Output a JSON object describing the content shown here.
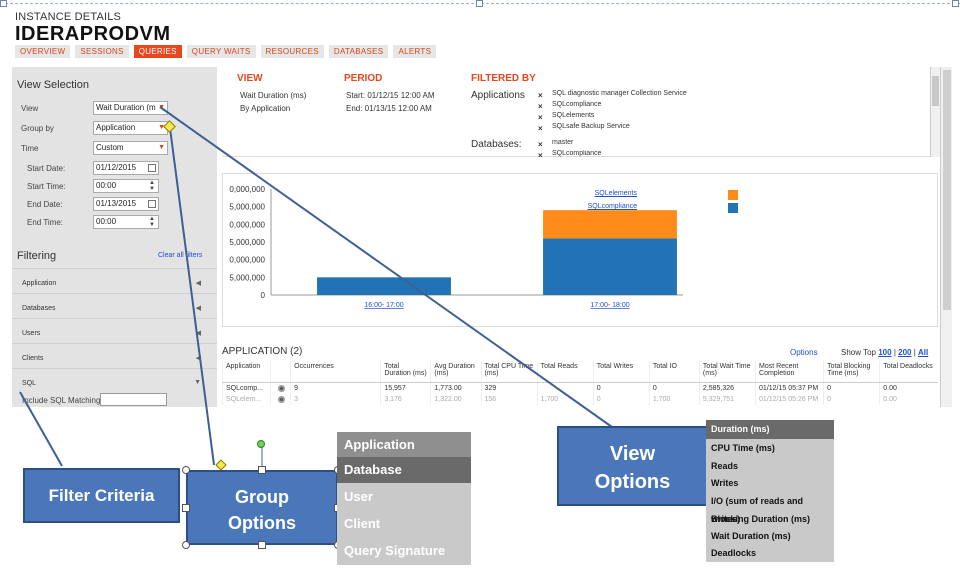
{
  "header": {
    "subtitle": "INSTANCE DETAILS",
    "title": "IDERAPRODVM"
  },
  "tabs": [
    {
      "label": "OVERVIEW",
      "active": false
    },
    {
      "label": "SESSIONS",
      "active": false
    },
    {
      "label": "QUERIES",
      "active": true
    },
    {
      "label": "QUERY WAITS",
      "active": false
    },
    {
      "label": "RESOURCES",
      "active": false
    },
    {
      "label": "DATABASES",
      "active": false
    },
    {
      "label": "ALERTS",
      "active": false
    }
  ],
  "view_selection": {
    "title": "View Selection",
    "view_label": "View",
    "view_value": "Wait Duration (m",
    "group_label": "Group by",
    "group_value": "Application",
    "time_label": "Time",
    "time_value": "Custom",
    "start_date_label": "Start Date:",
    "start_date": "01/12/2015",
    "start_time_label": "Start Time:",
    "start_time": "00:00",
    "end_date_label": "End Date:",
    "end_date": "01/13/2015",
    "end_time_label": "End Time:",
    "end_time": "00:00"
  },
  "filtering": {
    "title": "Filtering",
    "clear_all": "Clear all filters",
    "sections": [
      "Application",
      "Databases",
      "Users",
      "Clients",
      "SQL"
    ],
    "include_sql": "Include SQL Matching"
  },
  "summary": {
    "view_heading": "VIEW",
    "view_lines": [
      "Wait Duration (ms)",
      "By Application"
    ],
    "period_heading": "PERIOD",
    "period_lines": [
      "Start: 01/12/15 12:00 AM",
      "End: 01/13/15 12:00 AM"
    ],
    "filtered_heading": "FILTERED BY",
    "applications_label": "Applications",
    "applications": [
      "SQL diagnostic manager Collection Service",
      "SQLcompliance",
      "SQLelements",
      "SQLsafe Backup Service"
    ],
    "databases_label": "Databases:",
    "databases": [
      "master",
      "SQLcompliance"
    ]
  },
  "chart_data": {
    "type": "bar",
    "stacked": true,
    "categories": [
      "16:00- 17:00",
      "17:00- 18:00"
    ],
    "series": [
      {
        "name": "SQLcompliance",
        "color": "#2273b5",
        "values": [
          5000000,
          16000000
        ]
      },
      {
        "name": "SQLelements",
        "color": "#ff8c1a",
        "values": [
          0,
          8000000
        ]
      }
    ],
    "y_ticks": [
      "0",
      "5,000,000",
      "0,000,000",
      "5,000,000",
      "0,000,000",
      "5,000,000",
      "0,000,000"
    ],
    "ylim": [
      0,
      30000000
    ],
    "legend": "top-right"
  },
  "applications_table": {
    "title": "APPLICATION (2)",
    "options": "Options",
    "show_top_label": "Show Top",
    "show_top": [
      "100",
      "200",
      "All"
    ],
    "columns": [
      "Application",
      "Occurrences",
      "Total Duration (ms)",
      "Avg Duration (ms)",
      "Total CPU Time (ms)",
      "Total Reads",
      "Total Writes",
      "Total IO",
      "Total Wait Time (ms)",
      "Most Recent Completion",
      "Total Blocking Time (ms)",
      "Total Deadlocks"
    ],
    "rows": [
      [
        "SQLcomp...",
        "9",
        "15,957",
        "1,773.00",
        "329",
        "",
        "0",
        "0",
        "2,585,326",
        "01/12/15 05:37 PM",
        "0",
        "0.00"
      ],
      [
        "SQLelem...",
        "3",
        "3,176",
        "1,322.00",
        "156",
        "1,700",
        "0",
        "1,700",
        "5,329,751",
        "01/12/15 05:26 PM",
        "0",
        "0.00"
      ]
    ]
  },
  "callouts": {
    "filter": "Filter Criteria",
    "group": "Group Options",
    "view": "View Options"
  },
  "group_menu": [
    "Application",
    "Database",
    "User",
    "Client",
    "Query Signature"
  ],
  "view_menu": [
    "Duration (ms)",
    "CPU Time (ms)",
    "Reads",
    "Writes",
    "I/O (sum of reads and writes)",
    "Blocking Duration (ms)",
    "Wait Duration (ms)",
    "Deadlocks"
  ]
}
